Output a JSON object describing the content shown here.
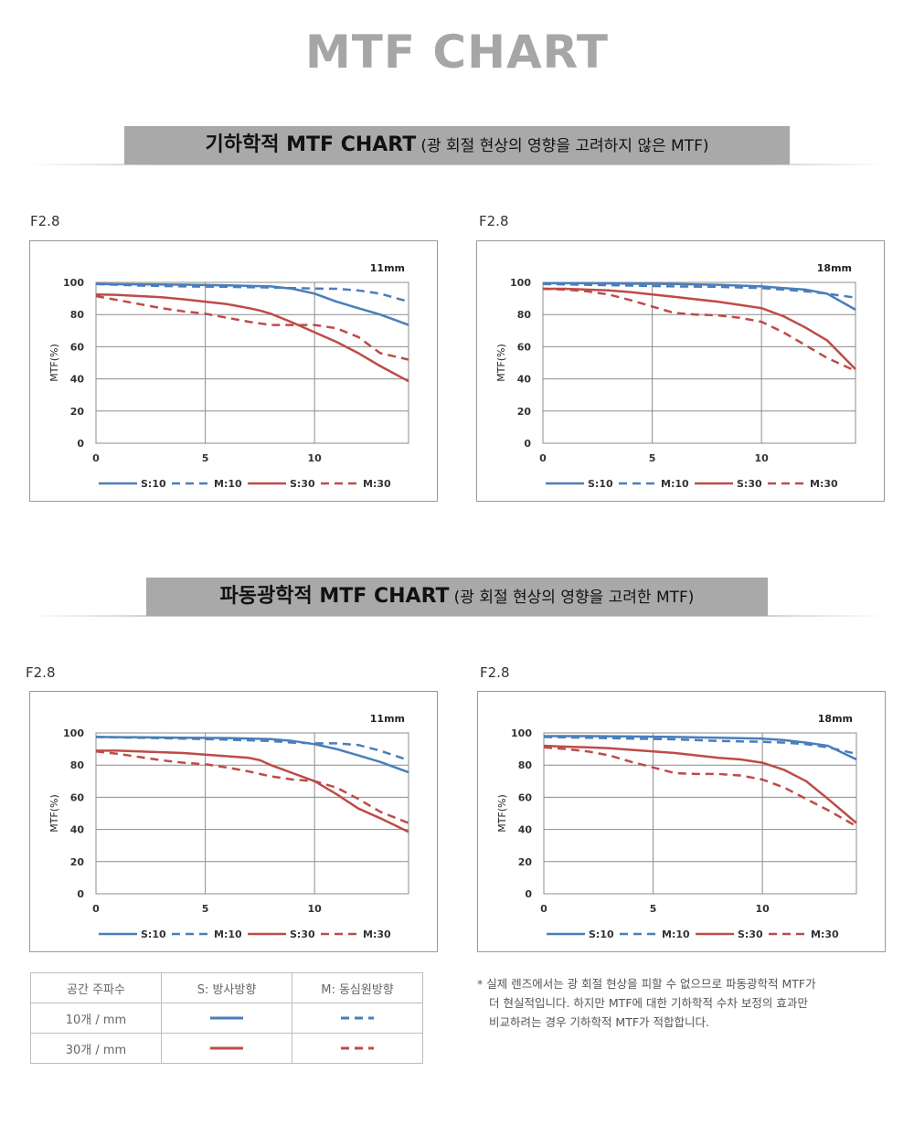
{
  "page": {
    "title": "MTF CHART"
  },
  "sections": [
    {
      "title_bold": "기하학적 MTF CHART",
      "title_sub": "(광 회절 현상의 영향을 고려하지 않은 MTF)"
    },
    {
      "title_bold": "파동광학적 MTF CHART",
      "title_sub": "(광 회절 현상의 영향을 고려한 MTF)"
    }
  ],
  "apertures": [
    "F2.8",
    "F2.8",
    "F2.8",
    "F2.8"
  ],
  "colors": {
    "S": "#4a7ebb",
    "M": "#4a7ebb",
    "S30": "#be4b48",
    "M30": "#be4b48"
  },
  "chart_data": [
    {
      "type": "line",
      "title": "11mm",
      "ylabel": "MTF(%)",
      "xlim": [
        0,
        14.3
      ],
      "ylim": [
        0,
        100
      ],
      "xticks": [
        0,
        5,
        10
      ],
      "yticks": [
        0,
        20,
        40,
        60,
        80,
        100
      ],
      "grid": true,
      "legend": "bottom",
      "series": [
        {
          "name": "S:10",
          "style": "solid",
          "color": "#4a7ebb",
          "x": [
            0,
            2,
            4,
            6,
            8,
            9,
            10,
            11,
            12,
            13,
            14.3
          ],
          "y": [
            99,
            98.8,
            98.6,
            98.2,
            97.5,
            96,
            93,
            88,
            84,
            80,
            73.5
          ]
        },
        {
          "name": "M:10",
          "style": "dashed",
          "color": "#4a7ebb",
          "x": [
            0,
            2,
            4,
            6,
            8,
            9,
            10,
            11,
            12,
            13,
            14.3
          ],
          "y": [
            99,
            98,
            97.5,
            97.2,
            96.8,
            96.5,
            96.2,
            96,
            95,
            93,
            88
          ]
        },
        {
          "name": "S:30",
          "style": "solid",
          "color": "#be4b48",
          "x": [
            0,
            1,
            2,
            3,
            4,
            5,
            6,
            7,
            7.5,
            8,
            9,
            10,
            11,
            12,
            13,
            14.3
          ],
          "y": [
            92.5,
            92.2,
            91.5,
            90.8,
            89.5,
            88,
            86.5,
            84,
            82.5,
            80.5,
            75,
            69,
            63,
            56,
            48,
            38.5
          ]
        },
        {
          "name": "M:30",
          "style": "dashed",
          "color": "#be4b48",
          "x": [
            0,
            1,
            2,
            3,
            4,
            5,
            6,
            7,
            8,
            9,
            10,
            11,
            12,
            13,
            14.3
          ],
          "y": [
            91.5,
            89,
            86.5,
            84,
            82,
            80.5,
            78,
            75.5,
            73.5,
            73.5,
            73.5,
            71.5,
            66,
            56,
            52
          ]
        }
      ]
    },
    {
      "type": "line",
      "title": "18mm",
      "ylabel": "MTF(%)",
      "xlim": [
        0,
        14.3
      ],
      "ylim": [
        0,
        100
      ],
      "xticks": [
        0,
        5,
        10
      ],
      "yticks": [
        0,
        20,
        40,
        60,
        80,
        100
      ],
      "grid": true,
      "legend": "bottom",
      "series": [
        {
          "name": "S:10",
          "style": "solid",
          "color": "#4a7ebb",
          "x": [
            0,
            2,
            4,
            6,
            8,
            10,
            11,
            12,
            13,
            14.3
          ],
          "y": [
            99.5,
            99.5,
            99.2,
            99,
            98.5,
            97.5,
            96.5,
            95.5,
            93,
            83
          ]
        },
        {
          "name": "M:10",
          "style": "dashed",
          "color": "#4a7ebb",
          "x": [
            0,
            2,
            4,
            6,
            8,
            10,
            11,
            12,
            13,
            14.3
          ],
          "y": [
            99,
            98.5,
            98,
            97.5,
            97.2,
            96.5,
            95.5,
            94.5,
            93,
            90.5
          ]
        },
        {
          "name": "S:30",
          "style": "solid",
          "color": "#be4b48",
          "x": [
            0,
            1,
            2,
            3,
            4,
            5,
            6,
            7,
            8,
            9,
            10,
            11,
            12,
            13,
            14.3
          ],
          "y": [
            96,
            96,
            95.5,
            95,
            94,
            92.5,
            91,
            89.5,
            88,
            86,
            84,
            79,
            72,
            64,
            46
          ]
        },
        {
          "name": "M:30",
          "style": "dashed",
          "color": "#be4b48",
          "x": [
            0,
            1,
            2,
            3,
            4,
            5,
            6,
            7,
            8,
            9,
            10,
            11,
            12,
            13,
            14.3
          ],
          "y": [
            96,
            95.5,
            94.5,
            92.5,
            89,
            85,
            81,
            80,
            79.5,
            78,
            75.5,
            69,
            61,
            53,
            45
          ]
        }
      ]
    },
    {
      "type": "line",
      "title": "11mm",
      "ylabel": "MTF(%)",
      "xlim": [
        0,
        14.3
      ],
      "ylim": [
        0,
        100
      ],
      "xticks": [
        0,
        5,
        10
      ],
      "yticks": [
        0,
        20,
        40,
        60,
        80,
        100
      ],
      "grid": true,
      "legend": "bottom",
      "series": [
        {
          "name": "S:10",
          "style": "solid",
          "color": "#4a7ebb",
          "x": [
            0,
            2,
            4,
            6,
            8,
            9,
            10,
            11,
            12,
            13,
            14.3
          ],
          "y": [
            97.5,
            97.3,
            97,
            96.8,
            96.2,
            95,
            93,
            90,
            86,
            82,
            75.5
          ]
        },
        {
          "name": "M:10",
          "style": "dashed",
          "color": "#4a7ebb",
          "x": [
            0,
            2,
            4,
            6,
            8,
            9,
            10,
            11,
            12,
            13,
            14.3
          ],
          "y": [
            97.5,
            97,
            96.5,
            95.8,
            95,
            94,
            93.5,
            93.5,
            92.5,
            89,
            83
          ]
        },
        {
          "name": "S:30",
          "style": "solid",
          "color": "#be4b48",
          "x": [
            0,
            1,
            2,
            3,
            4,
            5,
            6,
            7,
            7.5,
            8,
            9,
            10,
            11,
            12,
            13,
            14.3
          ],
          "y": [
            89,
            89,
            88.5,
            88,
            87.5,
            86.5,
            85.5,
            84.5,
            83,
            80,
            75,
            70,
            62,
            53,
            47,
            38.5
          ]
        },
        {
          "name": "M:30",
          "style": "dashed",
          "color": "#be4b48",
          "x": [
            0,
            1,
            2,
            3,
            4,
            5,
            6,
            7,
            8,
            9,
            10,
            11,
            12,
            13,
            14.3
          ],
          "y": [
            88.5,
            87,
            85,
            83,
            81.5,
            80.5,
            78.5,
            76,
            73,
            71,
            70,
            66,
            59,
            51,
            44
          ]
        }
      ]
    },
    {
      "type": "line",
      "title": "18mm",
      "ylabel": "MTF(%)",
      "xlim": [
        0,
        14.3
      ],
      "ylim": [
        0,
        100
      ],
      "xticks": [
        0,
        5,
        10
      ],
      "yticks": [
        0,
        20,
        40,
        60,
        80,
        100
      ],
      "grid": true,
      "legend": "bottom",
      "series": [
        {
          "name": "S:10",
          "style": "solid",
          "color": "#4a7ebb",
          "x": [
            0,
            2,
            4,
            6,
            8,
            10,
            11,
            12,
            13,
            14.3
          ],
          "y": [
            98,
            98,
            97.8,
            97.5,
            97,
            96.5,
            95.5,
            94,
            92,
            83.5
          ]
        },
        {
          "name": "M:10",
          "style": "dashed",
          "color": "#4a7ebb",
          "x": [
            0,
            2,
            4,
            6,
            8,
            10,
            11,
            12,
            13,
            14.3
          ],
          "y": [
            97.5,
            97,
            96.5,
            96,
            95,
            94.5,
            94,
            93,
            91,
            87
          ]
        },
        {
          "name": "S:30",
          "style": "solid",
          "color": "#be4b48",
          "x": [
            0,
            1,
            2,
            3,
            4,
            5,
            6,
            7,
            8,
            9,
            10,
            11,
            12,
            13,
            14.3
          ],
          "y": [
            92,
            91.5,
            91,
            90.5,
            89.5,
            88.5,
            87.5,
            86,
            84.5,
            83.5,
            81.5,
            77,
            70,
            59,
            44
          ]
        },
        {
          "name": "M:30",
          "style": "dashed",
          "color": "#be4b48",
          "x": [
            0,
            1,
            2,
            3,
            4,
            5,
            6,
            7,
            8,
            9,
            10,
            11,
            12,
            13,
            14.3
          ],
          "y": [
            91,
            90,
            88.5,
            86,
            82,
            78.5,
            75,
            74.5,
            74.5,
            73.5,
            71,
            66,
            59,
            52,
            42
          ]
        }
      ]
    }
  ],
  "legend_table": {
    "headers": [
      "공간 주파수",
      "S: 방사방향",
      "M: 동심원방향"
    ],
    "rows": [
      {
        "label": "10개 / mm",
        "s_style": "solid",
        "m_style": "dashed",
        "color": "#4a7ebb"
      },
      {
        "label": "30개 / mm",
        "s_style": "solid",
        "m_style": "dashed",
        "color": "#be4b48"
      }
    ]
  },
  "footnote": {
    "lines": [
      "* 실제 렌즈에서는 광 회절 현상을 피할 수 없으므로 파동광학적 MTF가",
      "더 현실적입니다. 하지만 MTF에 대한 기하학적 수차 보정의 효과만",
      "비교하려는 경우 기하학적 MTF가 적합합니다."
    ]
  }
}
